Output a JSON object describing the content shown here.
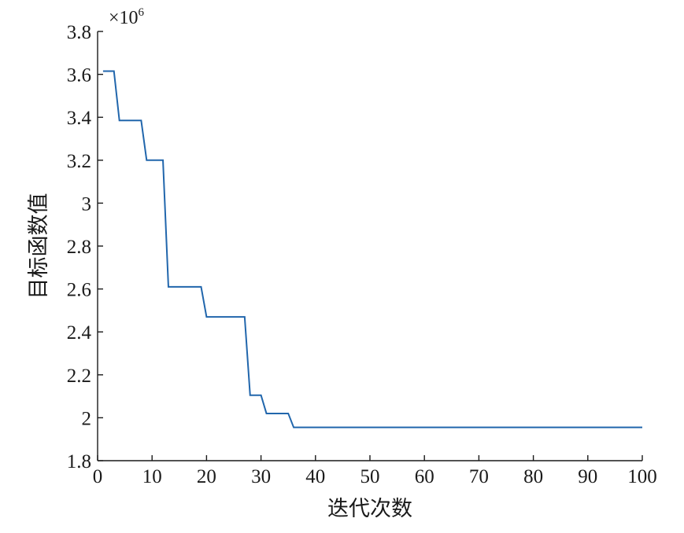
{
  "chart_data": {
    "type": "line",
    "title": "",
    "xlabel": "迭代次数",
    "ylabel": "目标函数值",
    "y_multiplier": "×10",
    "y_multiplier_exp": "6",
    "xlim": [
      0,
      100
    ],
    "ylim": [
      1.8,
      3.8
    ],
    "xticks": [
      0,
      10,
      20,
      30,
      40,
      50,
      60,
      70,
      80,
      90,
      100
    ],
    "xtick_labels": [
      "0",
      "10",
      "20",
      "30",
      "40",
      "50",
      "60",
      "70",
      "80",
      "90",
      "100"
    ],
    "yticks": [
      1.8,
      2.0,
      2.2,
      2.4,
      2.6,
      2.8,
      3.0,
      3.2,
      3.4,
      3.6,
      3.8
    ],
    "ytick_labels": [
      "1.8",
      "2",
      "2.2",
      "2.4",
      "2.6",
      "2.8",
      "3",
      "3.2",
      "3.4",
      "3.6",
      "3.8"
    ],
    "grid": false,
    "legend": "none",
    "color": "#2166ac",
    "series": [
      {
        "x": [
          1,
          3,
          4,
          8,
          9,
          12,
          13,
          19,
          20,
          27,
          28,
          30,
          31,
          35,
          36,
          100
        ],
        "y": [
          3.615,
          3.615,
          3.385,
          3.385,
          3.2,
          3.2,
          2.61,
          2.61,
          2.47,
          2.47,
          2.105,
          2.105,
          2.02,
          2.02,
          1.955,
          1.955
        ]
      }
    ]
  }
}
